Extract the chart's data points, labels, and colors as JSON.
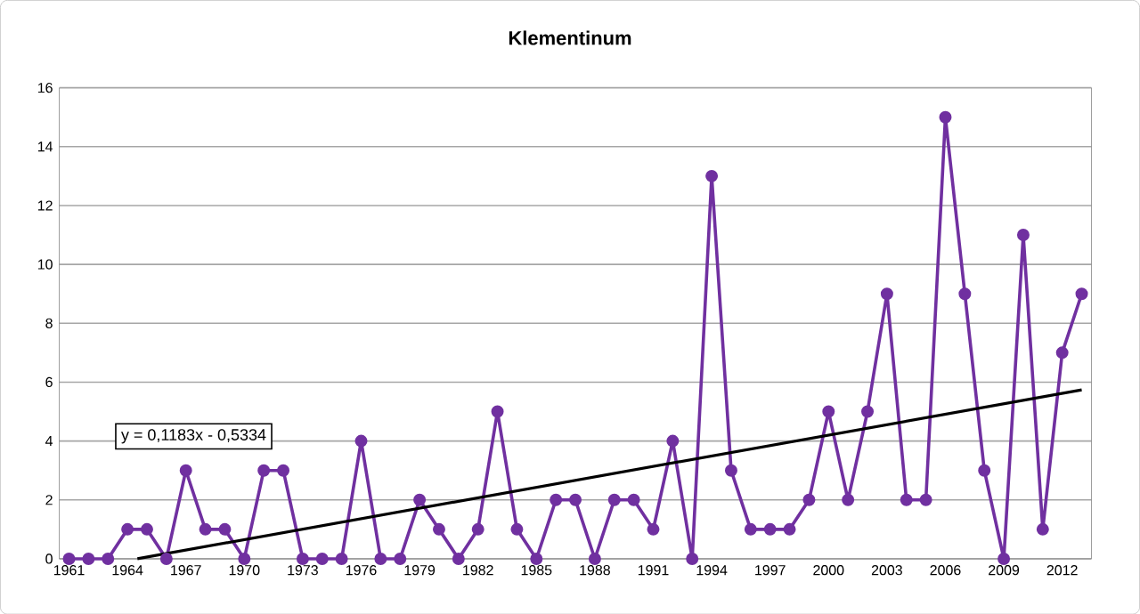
{
  "chart_data": {
    "type": "line",
    "title": "Klementinum",
    "x": [
      1961,
      1962,
      1963,
      1964,
      1965,
      1966,
      1967,
      1968,
      1969,
      1970,
      1971,
      1972,
      1973,
      1974,
      1975,
      1976,
      1977,
      1978,
      1979,
      1980,
      1981,
      1982,
      1983,
      1984,
      1985,
      1986,
      1987,
      1988,
      1989,
      1990,
      1991,
      1992,
      1993,
      1994,
      1995,
      1996,
      1997,
      1998,
      1999,
      2000,
      2001,
      2002,
      2003,
      2004,
      2005,
      2006,
      2007,
      2008,
      2009,
      2010,
      2011,
      2012,
      2013
    ],
    "series": [
      {
        "color": "#7030a0",
        "marker": "circle",
        "values": [
          0,
          0,
          0,
          1,
          1,
          0,
          3,
          1,
          1,
          0,
          3,
          3,
          0,
          0,
          0,
          4,
          0,
          0,
          2,
          1,
          0,
          1,
          5,
          1,
          0,
          2,
          2,
          0,
          2,
          2,
          1,
          4,
          0,
          13,
          3,
          1,
          1,
          1,
          2,
          5,
          2,
          5,
          9,
          2,
          2,
          15,
          9,
          3,
          0,
          11,
          1,
          7,
          9
        ]
      },
      {
        "type": "line",
        "color": "#000000",
        "marker": "none",
        "x": [
          1964.51,
          2013
        ],
        "values": [
          0,
          5.74
        ]
      }
    ],
    "xlim": [
      1960.5,
      2013.5
    ],
    "ylim": [
      0,
      16
    ],
    "xticks": [
      1961,
      1964,
      1967,
      1970,
      1973,
      1976,
      1979,
      1982,
      1985,
      1988,
      1991,
      1994,
      1997,
      2000,
      2003,
      2006,
      2009,
      2012
    ],
    "yticks": [
      0,
      2,
      4,
      6,
      8,
      10,
      12,
      14,
      16
    ],
    "grid": "y",
    "annotations": [
      "y = 0,1183x - 0,5334"
    ]
  }
}
